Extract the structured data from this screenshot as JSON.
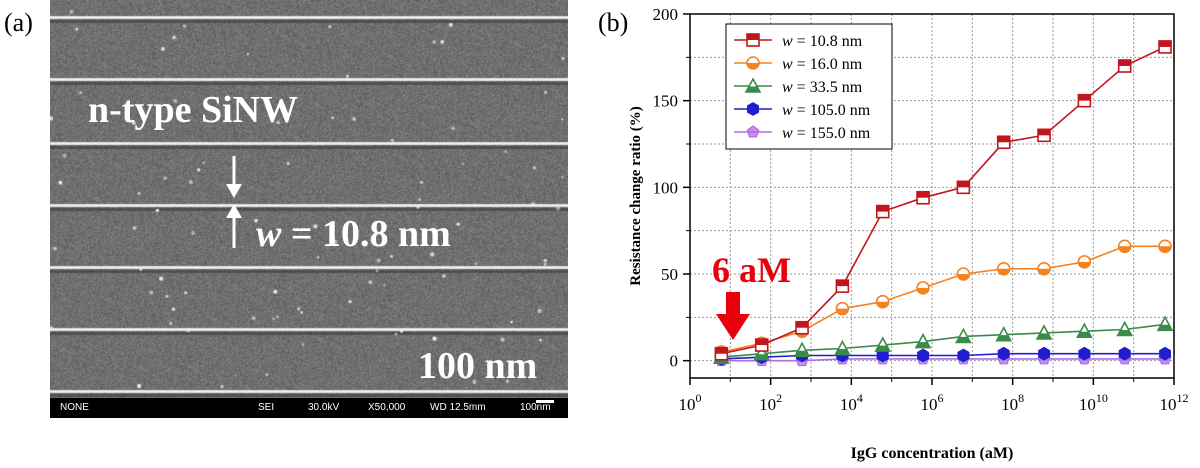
{
  "left_panel": {
    "label": "(a)",
    "material_label": "n-type SiNW",
    "width_label_italic": "w",
    "width_label_rest": " = 10.8 nm",
    "scale_label": "100 nm",
    "info_bar": {
      "mode": "NONE",
      "detector": "SEI",
      "voltage": "30.0kV",
      "magnification": "X50,000",
      "working_distance": "WD 12.5mm",
      "scale": "100nm"
    }
  },
  "right_panel": {
    "label": "(b)",
    "annotation_text": "6 aM",
    "annotation_color": "#e8000c"
  },
  "chart_data": {
    "type": "line",
    "title": "",
    "xlabel": "IgG concentration (aM)",
    "ylabel": "Resistance change ratio (%)",
    "x_scale": "log",
    "xlim": [
      1,
      1000000000000
    ],
    "ylim": [
      -10,
      200
    ],
    "x_ticks": [
      1,
      100,
      10000,
      1000000,
      100000000,
      10000000000,
      1000000000000
    ],
    "x_tick_labels": [
      {
        "base": "10",
        "exp": "0"
      },
      {
        "base": "10",
        "exp": "2"
      },
      {
        "base": "10",
        "exp": "4"
      },
      {
        "base": "10",
        "exp": "6"
      },
      {
        "base": "10",
        "exp": "8"
      },
      {
        "base": "10",
        "exp": "10"
      },
      {
        "base": "10",
        "exp": "12"
      }
    ],
    "y_ticks": [
      0,
      50,
      100,
      150,
      200
    ],
    "grid": true,
    "legend_position": "top-left",
    "x": [
      6,
      60,
      600,
      6000,
      60000,
      600000,
      6000000,
      60000000,
      600000000,
      6000000000,
      60000000000,
      600000000000
    ],
    "series": [
      {
        "name_italic": "w",
        "name": " = 10.8 nm",
        "color": "#c0161c",
        "marker": "square",
        "values": [
          4,
          9,
          19,
          43,
          86,
          94,
          100,
          126,
          130,
          150,
          170,
          181
        ]
      },
      {
        "name_italic": "w",
        "name": " = 16.0 nm",
        "color": "#f58220",
        "marker": "circle",
        "values": [
          5,
          10,
          17,
          30,
          34,
          42,
          50,
          53,
          53,
          57,
          66,
          66
        ]
      },
      {
        "name_italic": "w",
        "name": " = 33.5 nm",
        "color": "#3a8a4a",
        "marker": "triangle",
        "values": [
          2,
          4,
          6,
          7,
          9,
          11,
          14,
          15,
          16,
          17,
          18,
          21
        ]
      },
      {
        "name_italic": "w",
        "name": " = 105.0 nm",
        "color": "#1f1fcf",
        "marker": "hexagon",
        "values": [
          1,
          2,
          3,
          3,
          3,
          3,
          3,
          4,
          4,
          4,
          4,
          4
        ]
      },
      {
        "name_italic": "w",
        "name": " = 155.0 nm",
        "color": "#b06de6",
        "marker": "pentagon",
        "values": [
          0,
          0,
          0,
          1,
          1,
          1,
          1,
          1,
          1,
          1,
          1,
          1
        ]
      }
    ]
  }
}
